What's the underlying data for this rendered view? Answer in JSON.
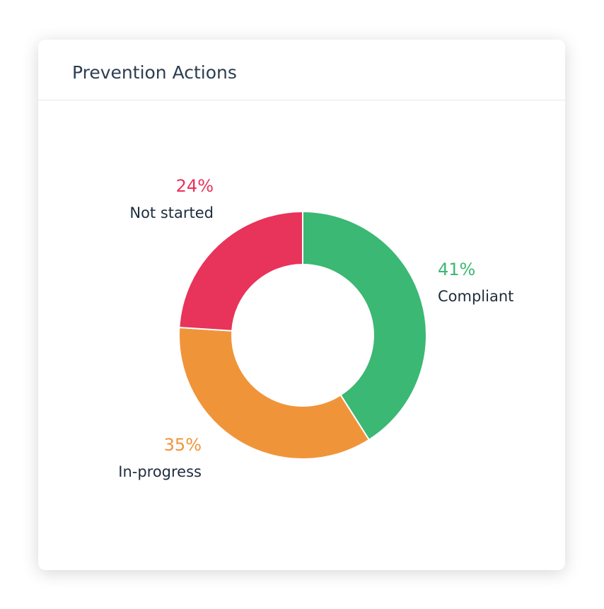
{
  "chart_data": {
    "type": "donut",
    "title": "Prevention Actions",
    "categories": [
      "Compliant",
      "In-progress",
      "Not started"
    ],
    "values": [
      41,
      35,
      24
    ],
    "value_labels": [
      "41%",
      "35%",
      "24%"
    ],
    "colors": [
      "#3bb873",
      "#f0943a",
      "#e8335a"
    ]
  }
}
